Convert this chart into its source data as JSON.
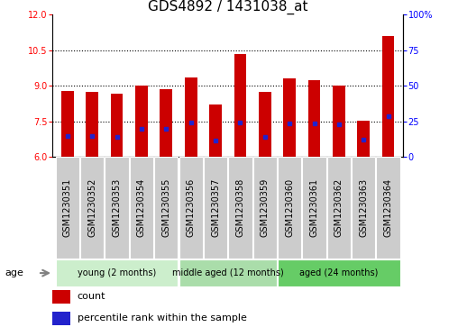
{
  "title": "GDS4892 / 1431038_at",
  "samples": [
    "GSM1230351",
    "GSM1230352",
    "GSM1230353",
    "GSM1230354",
    "GSM1230355",
    "GSM1230356",
    "GSM1230357",
    "GSM1230358",
    "GSM1230359",
    "GSM1230360",
    "GSM1230361",
    "GSM1230362",
    "GSM1230363",
    "GSM1230364"
  ],
  "counts": [
    8.8,
    8.75,
    8.65,
    9.02,
    8.85,
    9.35,
    8.2,
    10.35,
    8.75,
    9.3,
    9.25,
    9.0,
    7.52,
    11.1
  ],
  "percentile_vals": [
    6.9,
    6.9,
    6.85,
    7.2,
    7.2,
    7.45,
    6.7,
    7.45,
    6.85,
    7.42,
    7.4,
    7.37,
    6.72,
    7.72
  ],
  "ylim_left": [
    6,
    12
  ],
  "ylim_right": [
    0,
    100
  ],
  "yticks_left": [
    6,
    7.5,
    9,
    10.5,
    12
  ],
  "yticks_right": [
    0,
    25,
    50,
    75,
    100
  ],
  "bar_color": "#cc0000",
  "dot_color": "#2222cc",
  "baseline": 6,
  "groups": [
    {
      "label": "young (2 months)",
      "start": 0,
      "end": 5
    },
    {
      "label": "middle aged (12 months)",
      "start": 5,
      "end": 9
    },
    {
      "label": "aged (24 months)",
      "start": 9,
      "end": 14
    }
  ],
  "group_colors": [
    "#cceecc",
    "#aaddaa",
    "#66cc66"
  ],
  "legend_count_label": "count",
  "legend_pct_label": "percentile rank within the sample",
  "age_label": "age",
  "title_fontsize": 11,
  "tick_fontsize": 7,
  "label_fontsize": 7,
  "bar_width": 0.5,
  "sample_box_color": "#cccccc",
  "dotted_lines": [
    7.5,
    9.0,
    10.5
  ]
}
